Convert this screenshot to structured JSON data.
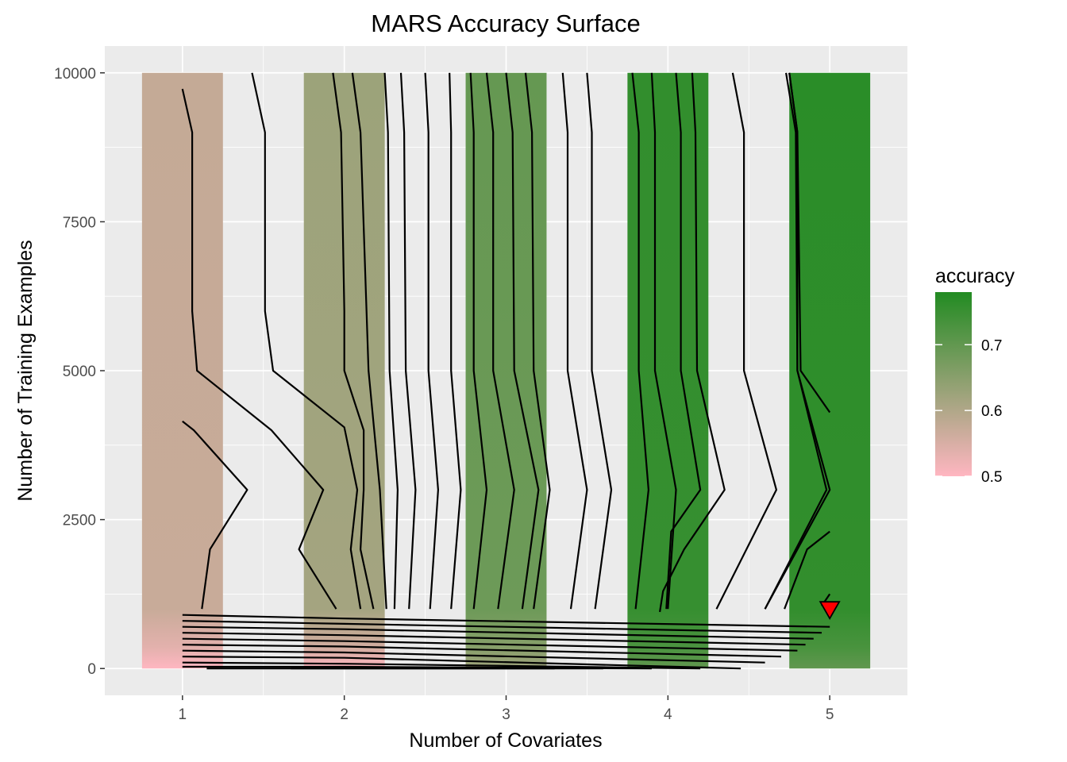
{
  "chart_data": {
    "type": "heatmap",
    "title": "MARS Accuracy Surface",
    "xlabel": "Number of Covariates",
    "ylabel": "Number of Training Examples",
    "xlim": [
      0.52,
      5.48
    ],
    "ylim": [
      -450,
      10450
    ],
    "x_ticks": [
      1,
      2,
      3,
      4,
      5
    ],
    "y_ticks": [
      0,
      2500,
      5000,
      7500,
      10000
    ],
    "grid": true,
    "tiles": [
      {
        "x": 1,
        "accuracy_at_0": 0.5,
        "accuracy_at_1000": 0.57,
        "accuracy_top": 0.575
      },
      {
        "x": 2,
        "accuracy_at_0": 0.5,
        "accuracy_at_1000": 0.615,
        "accuracy_top": 0.625
      },
      {
        "x": 3,
        "accuracy_at_0": 0.62,
        "accuracy_at_1000": 0.685,
        "accuracy_top": 0.695
      },
      {
        "x": 4,
        "accuracy_at_0": 0.7,
        "accuracy_at_1000": 0.755,
        "accuracy_top": 0.76
      },
      {
        "x": 5,
        "accuracy_at_0": 0.7,
        "accuracy_at_1000": 0.76,
        "accuracy_top": 0.77
      }
    ],
    "tile_width": 0.5,
    "contours_lower": [
      [
        [
          1,
          900
        ],
        [
          2,
          840
        ],
        [
          5,
          700
        ]
      ],
      [
        [
          1,
          800
        ],
        [
          2,
          750
        ],
        [
          4.95,
          600
        ]
      ],
      [
        [
          1,
          700
        ],
        [
          2,
          660
        ],
        [
          4.9,
          500
        ]
      ],
      [
        [
          1,
          600
        ],
        [
          2,
          560
        ],
        [
          4.85,
          400
        ]
      ],
      [
        [
          1,
          500
        ],
        [
          2,
          460
        ],
        [
          4.8,
          300
        ]
      ],
      [
        [
          1,
          400
        ],
        [
          2,
          370
        ],
        [
          4.7,
          200
        ]
      ],
      [
        [
          1,
          300
        ],
        [
          2,
          270
        ],
        [
          4.6,
          100
        ]
      ],
      [
        [
          1,
          200
        ],
        [
          2,
          180
        ],
        [
          4.45,
          0
        ]
      ],
      [
        [
          1,
          100
        ],
        [
          2,
          80
        ],
        [
          4.2,
          0
        ]
      ],
      [
        [
          1,
          30
        ],
        [
          2,
          30
        ],
        [
          3.9,
          0
        ]
      ],
      [
        [
          1.15,
          0
        ],
        [
          2.1,
          0
        ],
        [
          3.6,
          0
        ]
      ],
      [
        [
          1.67,
          0
        ],
        [
          2.3,
          0
        ],
        [
          3.3,
          0
        ]
      ]
    ],
    "contours_upper": [
      [
        [
          1,
          4150
        ],
        [
          1.07,
          4000
        ],
        [
          1.4,
          3000
        ],
        [
          1.17,
          2000
        ],
        [
          1.12,
          1000
        ]
      ],
      [
        [
          1,
          9730
        ],
        [
          1.06,
          9000
        ],
        [
          1.06,
          6000
        ],
        [
          1.09,
          5000
        ],
        [
          1.55,
          4000
        ],
        [
          1.87,
          3000
        ],
        [
          1.72,
          2000
        ],
        [
          1.95,
          1000
        ]
      ],
      [
        [
          1.43,
          10000
        ],
        [
          1.51,
          9000
        ],
        [
          1.51,
          6000
        ],
        [
          1.56,
          5000
        ],
        [
          2.0,
          4050
        ],
        [
          2.08,
          3000
        ],
        [
          2.04,
          2000
        ],
        [
          2.1,
          1000
        ]
      ],
      [
        [
          1.93,
          10000
        ],
        [
          1.98,
          9000
        ],
        [
          2.0,
          6000
        ],
        [
          2.0,
          5000
        ],
        [
          2.12,
          4000
        ],
        [
          2.12,
          3000
        ],
        [
          2.1,
          2000
        ],
        [
          2.18,
          1000
        ]
      ],
      [
        [
          2.05,
          10000
        ],
        [
          2.1,
          9000
        ],
        [
          2.15,
          5000
        ],
        [
          2.22,
          3000
        ],
        [
          2.26,
          1000
        ]
      ],
      [
        [
          2.25,
          10000
        ],
        [
          2.27,
          9000
        ],
        [
          2.28,
          5000
        ],
        [
          2.33,
          3000
        ],
        [
          2.31,
          1000
        ]
      ],
      [
        [
          2.35,
          10000
        ],
        [
          2.37,
          9000
        ],
        [
          2.38,
          5000
        ],
        [
          2.44,
          3000
        ],
        [
          2.4,
          1000
        ]
      ],
      [
        [
          2.5,
          10000
        ],
        [
          2.52,
          9000
        ],
        [
          2.52,
          5000
        ],
        [
          2.58,
          3000
        ],
        [
          2.53,
          1000
        ]
      ],
      [
        [
          2.65,
          10000
        ],
        [
          2.66,
          9000
        ],
        [
          2.66,
          5000
        ],
        [
          2.72,
          3000
        ],
        [
          2.66,
          1000
        ]
      ],
      [
        [
          2.78,
          10000
        ],
        [
          2.8,
          9000
        ],
        [
          2.8,
          5000
        ],
        [
          2.88,
          3000
        ],
        [
          2.8,
          1000
        ]
      ],
      [
        [
          2.88,
          10000
        ],
        [
          2.92,
          9000
        ],
        [
          2.92,
          5000
        ],
        [
          3.05,
          3000
        ],
        [
          2.95,
          1000
        ]
      ],
      [
        [
          3.0,
          10000
        ],
        [
          3.04,
          9000
        ],
        [
          3.05,
          5000
        ],
        [
          3.2,
          3000
        ],
        [
          3.1,
          1000
        ]
      ],
      [
        [
          3.12,
          10000
        ],
        [
          3.16,
          9000
        ],
        [
          3.17,
          5000
        ],
        [
          3.27,
          3000
        ],
        [
          3.17,
          1000
        ]
      ],
      [
        [
          3.35,
          10000
        ],
        [
          3.38,
          9000
        ],
        [
          3.38,
          5000
        ],
        [
          3.5,
          3000
        ],
        [
          3.4,
          1000
        ]
      ],
      [
        [
          3.5,
          10000
        ],
        [
          3.53,
          9000
        ],
        [
          3.53,
          5000
        ],
        [
          3.65,
          3000
        ],
        [
          3.55,
          1000
        ]
      ],
      [
        [
          3.78,
          10000
        ],
        [
          3.82,
          9000
        ],
        [
          3.82,
          5000
        ],
        [
          3.88,
          3000
        ],
        [
          3.8,
          1000
        ]
      ],
      [
        [
          3.9,
          10000
        ],
        [
          3.92,
          9000
        ],
        [
          3.92,
          5000
        ],
        [
          4.05,
          3000
        ],
        [
          4.0,
          1000
        ]
      ],
      [
        [
          4.05,
          10000
        ],
        [
          4.08,
          9000
        ],
        [
          4.08,
          5000
        ],
        [
          4.2,
          3000
        ],
        [
          4.02,
          2300
        ],
        [
          3.99,
          1000
        ]
      ],
      [
        [
          4.15,
          10000
        ],
        [
          4.17,
          9000
        ],
        [
          4.18,
          5000
        ],
        [
          4.35,
          3000
        ],
        [
          4.1,
          2000
        ],
        [
          3.97,
          1300
        ],
        [
          3.95,
          950
        ]
      ],
      [
        [
          4.4,
          10000
        ],
        [
          4.47,
          9000
        ],
        [
          4.47,
          5000
        ],
        [
          4.67,
          3000
        ],
        [
          4.3,
          1000
        ]
      ],
      [
        [
          4.73,
          10000
        ],
        [
          4.79,
          9000
        ],
        [
          4.8,
          5000
        ],
        [
          4.98,
          3000
        ],
        [
          4.6,
          1000
        ]
      ],
      [
        [
          4.75,
          10000
        ],
        [
          4.8,
          9000
        ],
        [
          4.8,
          5000
        ],
        [
          5.0,
          3000
        ],
        [
          4.6,
          1000
        ]
      ],
      [
        [
          4.75,
          10000
        ],
        [
          4.8,
          9000
        ],
        [
          4.82,
          5000
        ],
        [
          5.0,
          4300
        ]
      ],
      [
        [
          5.0,
          2300
        ],
        [
          4.86,
          2000
        ],
        [
          4.72,
          1000
        ]
      ],
      [
        [
          5.0,
          1250
        ],
        [
          4.95,
          1050
        ]
      ]
    ],
    "best_point": {
      "x": 5,
      "y": 1000
    },
    "legend": {
      "title": "accuracy",
      "placement": "right",
      "breaks": [
        "0.5",
        "0.6",
        "0.7"
      ],
      "range": [
        0.5,
        0.78
      ]
    },
    "colors": {
      "panel": "#EBEBEB",
      "grid_major": "#FFFFFF",
      "low": "#FFB6C1",
      "high": "#228B22",
      "contour": "#000000",
      "marker": "#FF0000"
    }
  }
}
